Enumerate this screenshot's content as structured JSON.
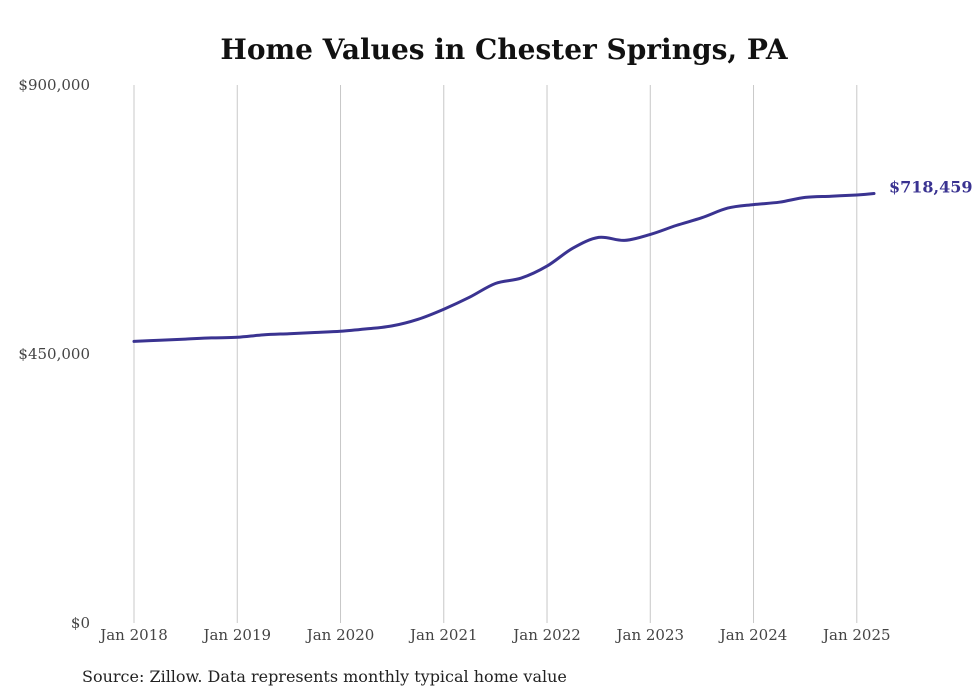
{
  "chart_data": {
    "type": "line",
    "title": "Home Values in Chester Springs, PA",
    "xlabel": "",
    "ylabel": "",
    "ylim": [
      0,
      900000
    ],
    "y_ticks": [
      "$900,000",
      "$450,000",
      "$0"
    ],
    "y_tick_values": [
      900000,
      450000,
      0
    ],
    "x_ticks": [
      "Jan 2018",
      "Jan 2019",
      "Jan 2020",
      "Jan 2021",
      "Jan 2022",
      "Jan 2023",
      "Jan 2024",
      "Jan 2025"
    ],
    "xlim": [
      "2018-01",
      "2025-03"
    ],
    "grid": "vertical",
    "line_color": "#3a3391",
    "series": [
      {
        "x": [
          "2018-01",
          "2018-04",
          "2018-07",
          "2018-10",
          "2019-01",
          "2019-04",
          "2019-07",
          "2019-10",
          "2020-01",
          "2020-04",
          "2020-07",
          "2020-10",
          "2021-01",
          "2021-04",
          "2021-07",
          "2021-10",
          "2022-01",
          "2022-04",
          "2022-07",
          "2022-10",
          "2023-01",
          "2023-04",
          "2023-07",
          "2023-10",
          "2024-01",
          "2024-04",
          "2024-07",
          "2024-10",
          "2025-01",
          "2025-03"
        ],
        "values": [
          471000,
          473000,
          475000,
          477000,
          478000,
          482000,
          484000,
          486000,
          488000,
          492000,
          497000,
          508000,
          525000,
          545000,
          568000,
          577000,
          597000,
          627000,
          645000,
          640000,
          650000,
          665000,
          678000,
          694000,
          700000,
          704000,
          712000,
          714000,
          716000,
          718459
        ]
      }
    ],
    "end_label": "$718,459"
  },
  "source_note": "Source: Zillow. Data represents monthly typical home value"
}
